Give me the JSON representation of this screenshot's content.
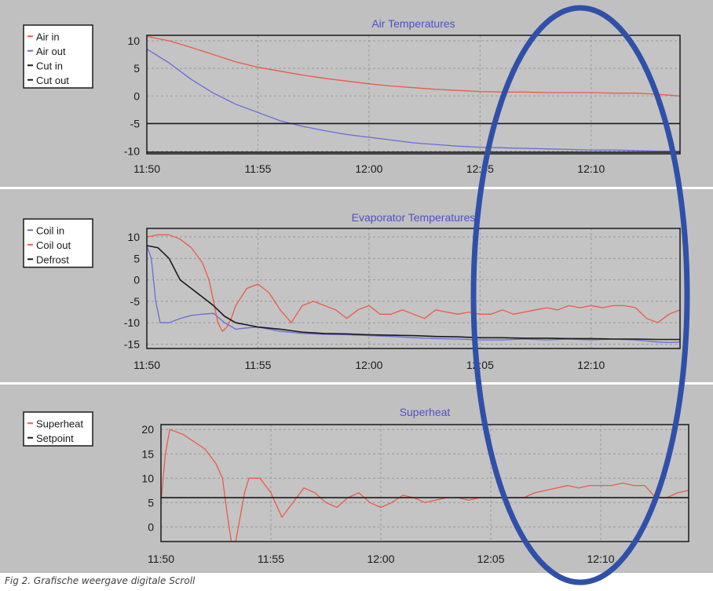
{
  "caption": "Fig 2. Grafische weergave digitale Scroll",
  "colors": {
    "panel_bg": "#c0c0c0",
    "plot_bg": "#c4c4c4",
    "red": "#ec5a48",
    "blue": "#6a6ad8",
    "black": "#1a1a1a",
    "title": "#5050c8",
    "highlight_ellipse": "#3050a8"
  },
  "chart_data": [
    {
      "type": "line",
      "title": "Air Temperatures",
      "x_ticks": [
        "11:50",
        "11:55",
        "12:00",
        "12:05",
        "12:10"
      ],
      "x_range": [
        0,
        24
      ],
      "y_ticks": [
        10,
        5,
        0,
        -5,
        -10
      ],
      "ylim": [
        -10.5,
        11
      ],
      "legend": "top-left",
      "grid": true,
      "series": [
        {
          "name": "Air in",
          "color": "red",
          "x": [
            0,
            1,
            2,
            3,
            4,
            5,
            6,
            7,
            8,
            9,
            10,
            11,
            12,
            13,
            14,
            15,
            16,
            17,
            18,
            19,
            20,
            21,
            22,
            23,
            24
          ],
          "y": [
            10.8,
            10,
            8.8,
            7.5,
            6.2,
            5.2,
            4.5,
            3.8,
            3.2,
            2.7,
            2.2,
            1.8,
            1.5,
            1.2,
            1,
            0.8,
            0.7,
            0.7,
            0.6,
            0.6,
            0.6,
            0.5,
            0.5,
            0.3,
            0
          ]
        },
        {
          "name": "Air out",
          "color": "blue",
          "x": [
            0,
            1,
            2,
            3,
            4,
            5,
            6,
            7,
            8,
            9,
            10,
            11,
            12,
            13,
            14,
            15,
            16,
            17,
            18,
            19,
            20,
            21,
            22,
            23,
            24
          ],
          "y": [
            8.5,
            6,
            3,
            0.5,
            -1.5,
            -3,
            -4.5,
            -5.5,
            -6.3,
            -7,
            -7.5,
            -8,
            -8.5,
            -8.8,
            -9.1,
            -9.3,
            -9.4,
            -9.5,
            -9.6,
            -9.7,
            -9.8,
            -9.8,
            -9.9,
            -10,
            -10
          ]
        },
        {
          "name": "Cut in",
          "color": "black",
          "x": [
            0,
            24
          ],
          "y": [
            -5,
            -5
          ]
        },
        {
          "name": "Cut out",
          "color": "black",
          "x": [
            0,
            24
          ],
          "y": [
            -10.2,
            -10.2
          ]
        }
      ]
    },
    {
      "type": "line",
      "title": "Evaporator Temperatures",
      "x_ticks": [
        "11:50",
        "11:55",
        "12:00",
        "12:05",
        "12:10"
      ],
      "x_range": [
        0,
        24
      ],
      "y_ticks": [
        10,
        5,
        0,
        -5,
        -10,
        -15
      ],
      "ylim": [
        -16,
        12
      ],
      "legend": "top-left",
      "grid": true,
      "series": [
        {
          "name": "Coil in",
          "color": "blue",
          "x": [
            0,
            0.2,
            0.4,
            0.6,
            1,
            1.5,
            2,
            2.5,
            3,
            3.5,
            4,
            4.5,
            5,
            6,
            7,
            8,
            9,
            10,
            11,
            12,
            13,
            14,
            15,
            16,
            17,
            18,
            19,
            20,
            21,
            22,
            23,
            23.5,
            24
          ],
          "y": [
            8,
            5,
            -5,
            -10,
            -10,
            -9,
            -8.3,
            -8,
            -7.8,
            -10,
            -11.5,
            -11.2,
            -11,
            -12,
            -12.5,
            -12.7,
            -12.8,
            -13,
            -13.2,
            -13.5,
            -13.7,
            -13.8,
            -14,
            -14,
            -13.8,
            -14,
            -13.8,
            -14,
            -13.8,
            -14,
            -14.5,
            -14.6,
            -14.5
          ]
        },
        {
          "name": "Coil out",
          "color": "red",
          "x": [
            0,
            0.5,
            1,
            1.5,
            2,
            2.5,
            2.8,
            3,
            3.2,
            3.4,
            3.6,
            3.8,
            4,
            4.5,
            5,
            5.5,
            6,
            6.5,
            7,
            7.5,
            8,
            8.5,
            9,
            9.5,
            10,
            10.5,
            11,
            11.5,
            12,
            12.5,
            13,
            13.5,
            14,
            14.5,
            15,
            15.5,
            16,
            16.5,
            17,
            17.5,
            18,
            18.5,
            19,
            19.5,
            20,
            20.5,
            21,
            21.5,
            22,
            22.5,
            23,
            23.5,
            24
          ],
          "y": [
            10,
            10.5,
            10.5,
            9.5,
            7.5,
            4,
            0,
            -5,
            -10,
            -12,
            -11,
            -9,
            -6,
            -2,
            -1,
            -3,
            -7,
            -10,
            -6,
            -5,
            -6,
            -7,
            -9,
            -7,
            -6,
            -8,
            -8,
            -7,
            -8,
            -9,
            -7,
            -7.5,
            -8,
            -7.5,
            -8,
            -8,
            -7,
            -8,
            -7.5,
            -7,
            -6.5,
            -7,
            -6,
            -6.5,
            -6,
            -6.5,
            -6,
            -6,
            -6.5,
            -9,
            -10,
            -8,
            -7
          ]
        },
        {
          "name": "Defrost",
          "color": "black",
          "x": [
            0,
            0.5,
            1,
            1.5,
            2,
            2.5,
            3,
            3.5,
            4,
            4.5,
            5,
            6,
            7,
            8,
            9,
            10,
            11,
            12,
            13,
            14,
            15,
            16,
            17,
            18,
            19,
            20,
            21,
            22,
            23,
            24
          ],
          "y": [
            8,
            7.5,
            5,
            0,
            -2,
            -4,
            -6,
            -8.5,
            -10,
            -10.5,
            -11,
            -11.5,
            -12.2,
            -12.5,
            -12.6,
            -12.8,
            -12.9,
            -13,
            -13.2,
            -13.3,
            -13.5,
            -13.5,
            -13.6,
            -13.6,
            -13.7,
            -13.7,
            -13.8,
            -13.8,
            -13.9,
            -13.9
          ]
        }
      ]
    },
    {
      "type": "line",
      "title": "Superheat",
      "x_ticks": [
        "11:50",
        "11:55",
        "12:00",
        "12:05",
        "12:10"
      ],
      "x_range": [
        0,
        24
      ],
      "y_ticks": [
        20,
        15,
        10,
        5,
        0
      ],
      "ylim": [
        -3,
        21
      ],
      "legend": "top-left",
      "grid": true,
      "series": [
        {
          "name": "Superheat",
          "color": "red",
          "x": [
            0,
            0.2,
            0.4,
            1,
            2,
            2.5,
            2.8,
            3,
            3.2,
            3.4,
            3.6,
            3.8,
            4,
            4.5,
            5,
            5.5,
            6,
            6.5,
            7,
            7.5,
            8,
            8.5,
            9,
            9.5,
            10,
            10.5,
            11,
            11.5,
            12,
            12.5,
            13,
            13.5,
            14,
            14.5,
            15,
            15.5,
            16,
            16.5,
            17,
            17.5,
            18,
            18.5,
            19,
            19.5,
            20,
            20.5,
            21,
            21.5,
            22,
            22.5,
            23,
            23.5,
            24
          ],
          "y": [
            5,
            15,
            20,
            19,
            16,
            13,
            10,
            3,
            -3,
            -3,
            2,
            7,
            10,
            10,
            7,
            2,
            5,
            8,
            7,
            5,
            4,
            6,
            7,
            5,
            4,
            5,
            6.5,
            6,
            5,
            5.5,
            6,
            6,
            5.5,
            6,
            6,
            6,
            6,
            6,
            7,
            7.5,
            8,
            8.5,
            8,
            8.5,
            8.5,
            8.5,
            9,
            8.5,
            8.5,
            6,
            6,
            7,
            7.5
          ]
        },
        {
          "name": "Setpoint",
          "color": "black",
          "x": [
            0,
            24
          ],
          "y": [
            6,
            6
          ]
        }
      ]
    }
  ]
}
